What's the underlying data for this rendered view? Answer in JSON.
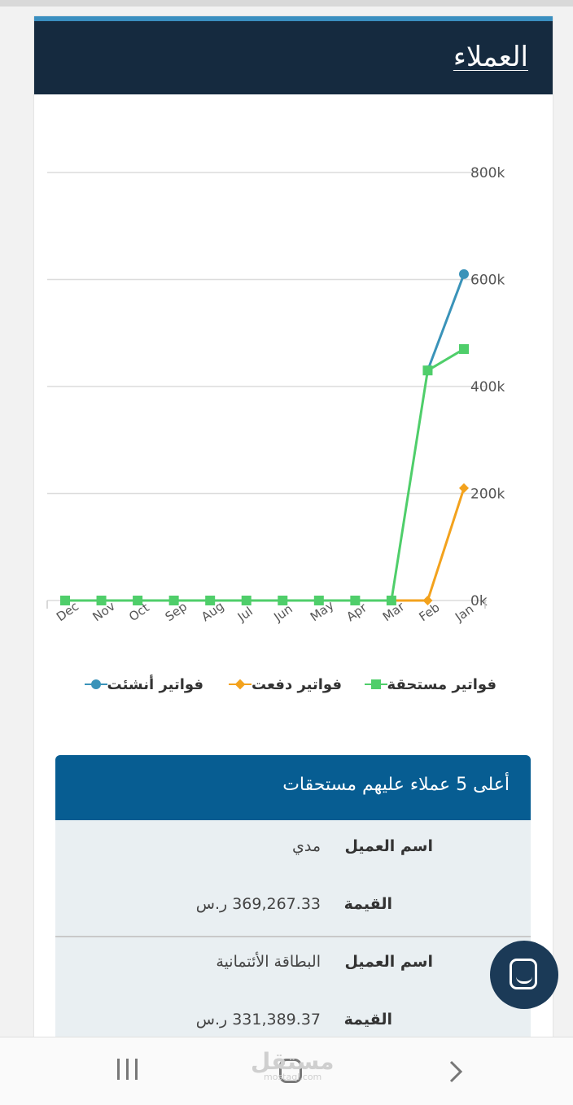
{
  "card": {
    "title": "العملاء"
  },
  "chart_data": {
    "type": "line",
    "categories": [
      "Dec",
      "Nov",
      "Oct",
      "Sep",
      "Aug",
      "Jul",
      "Jun",
      "May",
      "Apr",
      "Mar",
      "Feb",
      "Jan"
    ],
    "y_ticks": [
      "0k",
      "200k",
      "400k",
      "600k",
      "800k"
    ],
    "ylim": [
      0,
      800000
    ],
    "grid": true,
    "legend_placement": "bottom",
    "series": [
      {
        "name": "فواتير مستحقة",
        "color": "#4fce6a",
        "marker": "square",
        "values": [
          0,
          0,
          0,
          0,
          0,
          0,
          0,
          0,
          0,
          0,
          430000,
          470000
        ]
      },
      {
        "name": "فواتير دفعت",
        "color": "#f3a21d",
        "marker": "diamond",
        "values": [
          null,
          null,
          null,
          null,
          null,
          null,
          null,
          null,
          null,
          0,
          0,
          210000
        ]
      },
      {
        "name": "فواتير أنشئت",
        "color": "#3a93b9",
        "marker": "circle",
        "values": [
          null,
          null,
          null,
          null,
          null,
          null,
          null,
          null,
          null,
          null,
          430000,
          610000
        ]
      }
    ]
  },
  "top_clients": {
    "title": "أعلى 5 عملاء عليهم مستحقات",
    "name_label": "اسم العميل",
    "value_label": "القيمة",
    "rows": [
      {
        "name": "مدي",
        "value": "369,267.33 ر.س"
      },
      {
        "name": "البطاقة الأئتمانية",
        "value": "331,389.37 ر.س"
      }
    ]
  },
  "watermark": {
    "text": "مستقل",
    "sub": "mostaql.com"
  },
  "icons": {
    "chat": "chat-bubble-icon",
    "nav_recent": "recent-apps-icon",
    "nav_home": "home-icon",
    "nav_back": "back-chevron-icon"
  }
}
